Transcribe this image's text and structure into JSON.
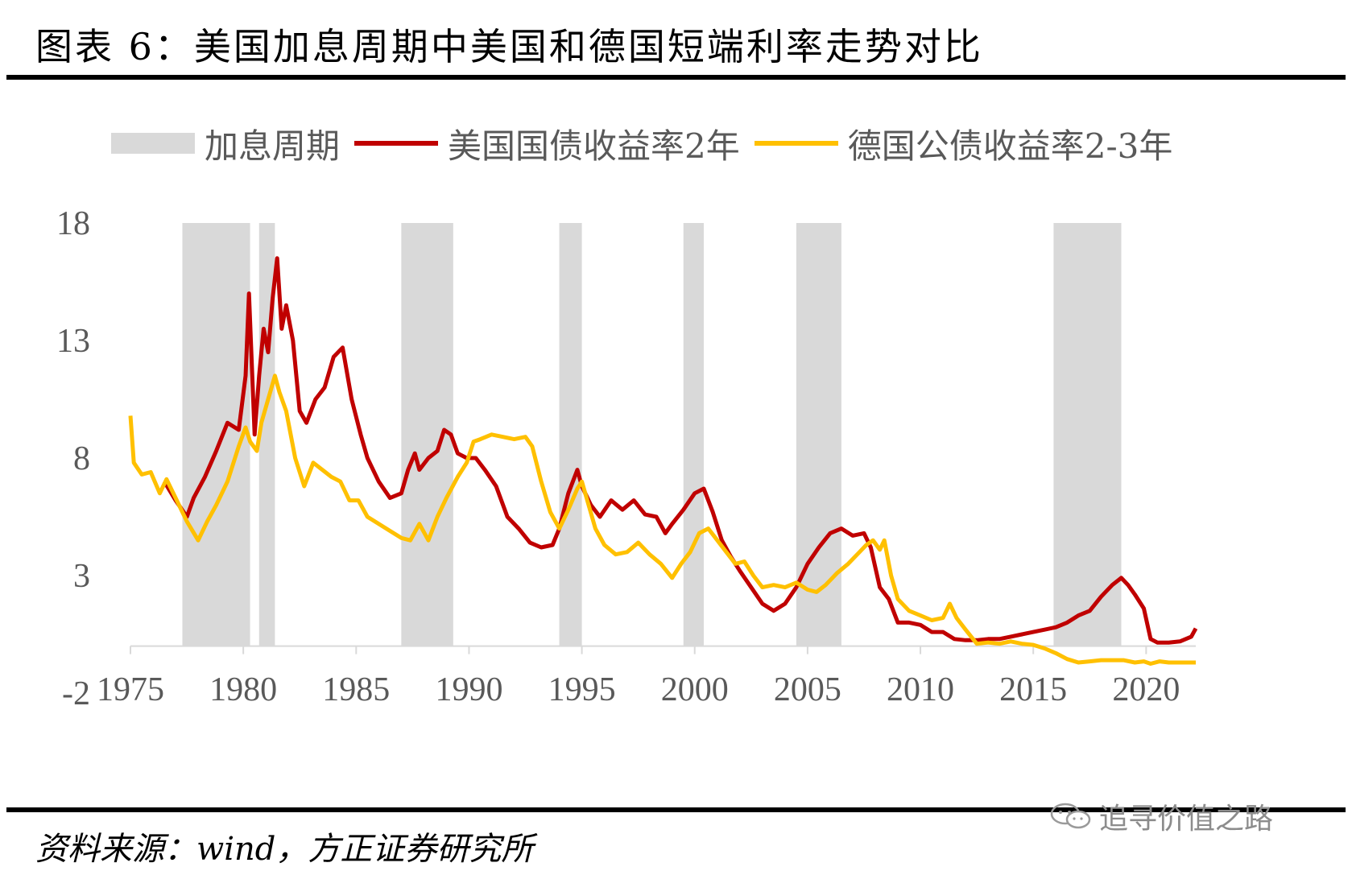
{
  "title": "图表 6：美国加息周期中美国和德国短端利率走势对比",
  "source": "资料来源：wind，方正证券研究所",
  "watermark": "追寻价值之路",
  "chart_data": {
    "type": "line",
    "title": "图表 6：美国加息周期中美国和德国短端利率走势对比",
    "xlabel": "",
    "ylabel": "",
    "xlim": [
      1975,
      2022.2
    ],
    "ylim": [
      -2,
      18
    ],
    "yticks": [
      18,
      13,
      8,
      3,
      -2
    ],
    "xticks": [
      1975,
      1980,
      1985,
      1990,
      1995,
      2000,
      2005,
      2010,
      2015,
      2020
    ],
    "legend_position": "top",
    "shaded_periods": {
      "name": "加息周期",
      "color": "#d9d9d9",
      "ranges": [
        [
          1977.3,
          1980.3
        ],
        [
          1980.7,
          1981.4
        ],
        [
          1987.0,
          1989.3
        ],
        [
          1994.0,
          1995.0
        ],
        [
          1999.5,
          2000.4
        ],
        [
          2004.5,
          2006.5
        ],
        [
          2015.9,
          2018.9
        ]
      ]
    },
    "series": [
      {
        "name": "美国国债收益率2年",
        "color": "#c00000",
        "x": [
          1976.5,
          1977.0,
          1977.5,
          1977.8,
          1978.3,
          1978.8,
          1979.3,
          1979.8,
          1980.1,
          1980.25,
          1980.5,
          1980.7,
          1980.9,
          1981.1,
          1981.3,
          1981.5,
          1981.7,
          1981.9,
          1982.2,
          1982.5,
          1982.8,
          1983.2,
          1983.6,
          1984.0,
          1984.4,
          1984.8,
          1985.2,
          1985.5,
          1986.0,
          1986.5,
          1987.0,
          1987.3,
          1987.6,
          1987.8,
          1988.2,
          1988.6,
          1988.9,
          1989.2,
          1989.5,
          1989.9,
          1990.3,
          1990.7,
          1991.2,
          1991.7,
          1992.2,
          1992.7,
          1993.2,
          1993.7,
          1994.0,
          1994.4,
          1994.8,
          1995.0,
          1995.4,
          1995.8,
          1996.3,
          1996.8,
          1997.3,
          1997.8,
          1998.3,
          1998.7,
          1999.0,
          1999.5,
          2000.0,
          2000.4,
          2000.8,
          2001.2,
          2001.6,
          2002.0,
          2002.5,
          2003.0,
          2003.5,
          2004.0,
          2004.5,
          2005.0,
          2005.5,
          2006.0,
          2006.5,
          2007.0,
          2007.5,
          2007.8,
          2008.2,
          2008.6,
          2009.0,
          2009.5,
          2010.0,
          2010.5,
          2011.0,
          2011.5,
          2012.0,
          2012.5,
          2013.0,
          2013.5,
          2014.0,
          2014.5,
          2015.0,
          2015.5,
          2016.0,
          2016.5,
          2017.0,
          2017.5,
          2018.0,
          2018.5,
          2018.9,
          2019.2,
          2019.5,
          2019.9,
          2020.2,
          2020.5,
          2021.0,
          2021.5,
          2022.0,
          2022.2
        ],
        "values": [
          7.0,
          6.2,
          5.5,
          6.3,
          7.2,
          8.3,
          9.5,
          9.2,
          11.5,
          15.0,
          9.0,
          11.5,
          13.5,
          12.5,
          14.8,
          16.5,
          13.5,
          14.5,
          13.0,
          10.0,
          9.5,
          10.5,
          11.0,
          12.3,
          12.7,
          10.5,
          9.0,
          8.0,
          7.0,
          6.3,
          6.5,
          7.5,
          8.2,
          7.5,
          8.0,
          8.3,
          9.2,
          9.0,
          8.2,
          8.0,
          8.0,
          7.5,
          6.8,
          5.5,
          5.0,
          4.4,
          4.2,
          4.3,
          5.0,
          6.5,
          7.5,
          6.8,
          6.0,
          5.5,
          6.2,
          5.8,
          6.2,
          5.6,
          5.5,
          4.8,
          5.2,
          5.8,
          6.5,
          6.7,
          5.7,
          4.5,
          3.8,
          3.2,
          2.5,
          1.8,
          1.5,
          1.8,
          2.5,
          3.5,
          4.2,
          4.8,
          5.0,
          4.7,
          4.8,
          4.2,
          2.5,
          2.0,
          1.0,
          1.0,
          0.9,
          0.6,
          0.6,
          0.3,
          0.25,
          0.25,
          0.3,
          0.3,
          0.4,
          0.5,
          0.6,
          0.7,
          0.8,
          1.0,
          1.3,
          1.5,
          2.1,
          2.6,
          2.9,
          2.6,
          2.2,
          1.6,
          0.3,
          0.15,
          0.15,
          0.2,
          0.4,
          0.75
        ]
      },
      {
        "name": "德国公债收益率2-3年",
        "color": "#ffc000",
        "x": [
          1975.0,
          1975.15,
          1975.5,
          1975.9,
          1976.3,
          1976.6,
          1977.0,
          1977.5,
          1978.0,
          1978.4,
          1978.8,
          1979.3,
          1979.8,
          1980.1,
          1980.3,
          1980.6,
          1980.8,
          1981.1,
          1981.4,
          1981.6,
          1981.9,
          1982.3,
          1982.7,
          1983.1,
          1983.5,
          1983.9,
          1984.3,
          1984.7,
          1985.1,
          1985.5,
          1986.0,
          1986.5,
          1987.0,
          1987.4,
          1987.8,
          1988.2,
          1988.6,
          1989.0,
          1989.5,
          1989.9,
          1990.2,
          1990.5,
          1991.0,
          1991.5,
          1992.0,
          1992.5,
          1992.8,
          1993.2,
          1993.6,
          1994.0,
          1994.4,
          1994.8,
          1995.0,
          1995.3,
          1995.6,
          1996.0,
          1996.5,
          1997.0,
          1997.5,
          1998.0,
          1998.5,
          1999.0,
          1999.4,
          1999.8,
          2000.2,
          2000.6,
          2001.0,
          2001.4,
          2001.8,
          2002.2,
          2002.6,
          2003.0,
          2003.5,
          2004.0,
          2004.5,
          2005.0,
          2005.4,
          2005.8,
          2006.3,
          2006.8,
          2007.3,
          2007.6,
          2007.9,
          2008.2,
          2008.4,
          2008.7,
          2009.0,
          2009.5,
          2010.0,
          2010.5,
          2011.0,
          2011.3,
          2011.6,
          2012.0,
          2012.5,
          2013.0,
          2013.5,
          2014.0,
          2014.5,
          2015.0,
          2015.5,
          2016.0,
          2016.5,
          2017.0,
          2017.5,
          2018.0,
          2018.5,
          2019.0,
          2019.5,
          2019.9,
          2020.2,
          2020.6,
          2021.0,
          2021.5,
          2022.0,
          2022.2
        ],
        "values": [
          9.8,
          7.8,
          7.3,
          7.4,
          6.5,
          7.1,
          6.3,
          5.3,
          4.5,
          5.3,
          6.0,
          7.0,
          8.5,
          9.3,
          8.7,
          8.3,
          9.5,
          10.5,
          11.5,
          10.8,
          10.0,
          8.0,
          6.8,
          7.8,
          7.5,
          7.2,
          7.0,
          6.2,
          6.2,
          5.5,
          5.2,
          4.9,
          4.6,
          4.5,
          5.2,
          4.5,
          5.5,
          6.3,
          7.2,
          7.8,
          8.7,
          8.8,
          9.0,
          8.9,
          8.8,
          8.9,
          8.5,
          7.0,
          5.7,
          5.0,
          5.8,
          6.7,
          7.0,
          6.0,
          5.0,
          4.3,
          3.9,
          4.0,
          4.4,
          3.9,
          3.5,
          2.9,
          3.5,
          4.0,
          4.8,
          5.0,
          4.5,
          4.0,
          3.5,
          3.6,
          3.0,
          2.5,
          2.6,
          2.5,
          2.7,
          2.4,
          2.3,
          2.6,
          3.1,
          3.5,
          4.0,
          4.3,
          4.5,
          4.1,
          4.5,
          3.0,
          2.0,
          1.5,
          1.3,
          1.1,
          1.2,
          1.8,
          1.2,
          0.7,
          0.1,
          0.15,
          0.1,
          0.2,
          0.1,
          0.05,
          -0.1,
          -0.3,
          -0.55,
          -0.7,
          -0.65,
          -0.6,
          -0.6,
          -0.6,
          -0.7,
          -0.65,
          -0.75,
          -0.65,
          -0.7,
          -0.7,
          -0.7,
          -0.7
        ]
      }
    ]
  }
}
